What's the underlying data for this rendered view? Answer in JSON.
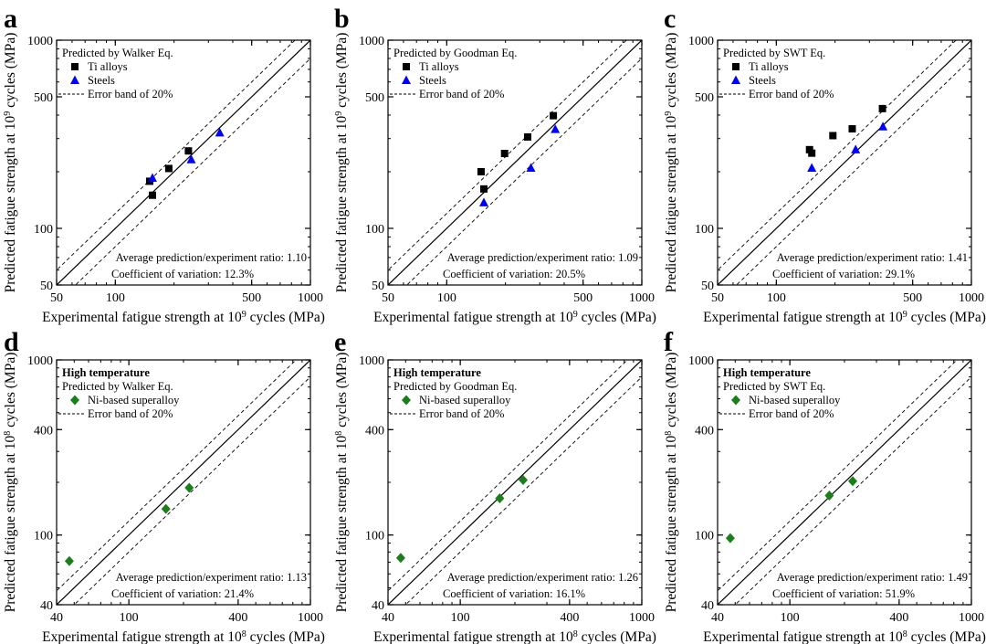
{
  "chart_data": [
    {
      "panel": "a",
      "type": "scatter",
      "xscale": "log",
      "yscale": "log",
      "xlim": [
        50,
        1000
      ],
      "ylim": [
        50,
        1000
      ],
      "xticks": [
        50,
        100,
        500,
        1000
      ],
      "yticks": [
        50,
        100,
        500,
        1000
      ],
      "xlabel": "Experimental fatigue strength at 10^9 cycles (MPa)",
      "ylabel": "Predicted fatigue strength at 10^9 cycles (MPa)",
      "cycles_exp": "9",
      "legend_title": "Predicted by Walker Eq.",
      "legend_title_bold": false,
      "legend_extra": "Error band of 20%",
      "series": [
        {
          "name": "Ti alloys",
          "marker": "square",
          "color": "#000000",
          "points": [
            [
              150,
              178
            ],
            [
              155,
              150
            ],
            [
              188,
              208
            ],
            [
              237,
              258
            ]
          ]
        },
        {
          "name": "Steels",
          "marker": "triangle",
          "color": "#0000ff",
          "points": [
            [
              155,
              185
            ],
            [
              245,
              232
            ],
            [
              343,
              322
            ]
          ]
        }
      ],
      "annotations": [
        "Average prediction/experiment ratio: 1.10",
        "Coefficient of variation: 12.3%"
      ]
    },
    {
      "panel": "b",
      "type": "scatter",
      "xscale": "log",
      "yscale": "log",
      "xlim": [
        50,
        1000
      ],
      "ylim": [
        50,
        1000
      ],
      "xticks": [
        50,
        100,
        500,
        1000
      ],
      "yticks": [
        50,
        100,
        500,
        1000
      ],
      "xlabel": "Experimental fatigue strength at 10^9 cycles (MPa)",
      "ylabel": "Predicted fatigue strength at 10^9 cycles (MPa)",
      "cycles_exp": "9",
      "legend_title": "Predicted by Goodman Eq.",
      "legend_title_bold": false,
      "legend_extra": "Error band of 20%",
      "series": [
        {
          "name": "Ti alloys",
          "marker": "square",
          "color": "#000000",
          "points": [
            [
              150,
              200
            ],
            [
              155,
              162
            ],
            [
              198,
              250
            ],
            [
              260,
              306
            ],
            [
              352,
              397
            ]
          ]
        },
        {
          "name": "Steels",
          "marker": "triangle",
          "color": "#0000ff",
          "points": [
            [
              155,
              137
            ],
            [
              270,
              209
            ],
            [
              360,
              336
            ]
          ]
        }
      ],
      "annotations": [
        "Average prediction/experiment ratio: 1.09",
        "Coefficient of variation: 20.5%"
      ]
    },
    {
      "panel": "c",
      "type": "scatter",
      "xscale": "log",
      "yscale": "log",
      "xlim": [
        50,
        1000
      ],
      "ylim": [
        50,
        1000
      ],
      "xticks": [
        50,
        100,
        500,
        1000
      ],
      "yticks": [
        50,
        100,
        500,
        1000
      ],
      "xlabel": "Experimental fatigue strength at 10^9 cycles (MPa)",
      "ylabel": "Predicted fatigue strength at 10^9 cycles (MPa)",
      "cycles_exp": "9",
      "legend_title": "Predicted by SWT Eq.",
      "legend_title_bold": false,
      "legend_extra": "Error band of 20%",
      "series": [
        {
          "name": "Ti alloys",
          "marker": "square",
          "color": "#000000",
          "points": [
            [
              148,
              262
            ],
            [
              152,
              251
            ],
            [
              195,
              311
            ],
            [
              245,
              338
            ],
            [
              350,
              433
            ]
          ]
        },
        {
          "name": "Steels",
          "marker": "triangle",
          "color": "#0000ff",
          "points": [
            [
              152,
              209
            ],
            [
              255,
              262
            ],
            [
              352,
              347
            ]
          ]
        }
      ],
      "annotations": [
        "Average prediction/experiment ratio: 1.41",
        "Coefficient of variation: 29.1%"
      ]
    },
    {
      "panel": "d",
      "type": "scatter",
      "xscale": "log",
      "yscale": "log",
      "xlim": [
        40,
        1000
      ],
      "ylim": [
        40,
        1000
      ],
      "xticks": [
        40,
        100,
        400,
        1000
      ],
      "yticks": [
        40,
        100,
        400,
        1000
      ],
      "xlabel": "Experimental fatigue strength at 10^8 cycles (MPa)",
      "ylabel": "Predicted fatigue strength at 10^8 cycles (MPa)",
      "cycles_exp": "8",
      "legend_title": "High temperature",
      "legend_title_bold": true,
      "legend_extra": "Predicted by Walker Eq.",
      "legend_band": "Error band of 20%",
      "series": [
        {
          "name": "Ni-based superalloy",
          "marker": "diamond",
          "color": "#1a7f1a",
          "points": [
            [
              47,
              71
            ],
            [
              160,
              141
            ],
            [
              215,
              186
            ]
          ]
        }
      ],
      "annotations": [
        "Average prediction/experiment ratio: 1.13",
        "Coefficient of variation: 21.4%"
      ]
    },
    {
      "panel": "e",
      "type": "scatter",
      "xscale": "log",
      "yscale": "log",
      "xlim": [
        40,
        1000
      ],
      "ylim": [
        40,
        1000
      ],
      "xticks": [
        40,
        100,
        400,
        1000
      ],
      "yticks": [
        40,
        100,
        400,
        1000
      ],
      "xlabel": "Experimental fatigue strength at 10^8 cycles (MPa)",
      "ylabel": "Predicted fatigue strength at 10^8 cycles (MPa)",
      "cycles_exp": "8",
      "legend_title": "High temperature",
      "legend_title_bold": true,
      "legend_extra": "Predicted by Goodman Eq.",
      "legend_band": "Error band of 20%",
      "series": [
        {
          "name": "Ni-based superalloy",
          "marker": "diamond",
          "color": "#1a7f1a",
          "points": [
            [
              47,
              74
            ],
            [
              165,
              162
            ],
            [
              222,
              206
            ]
          ]
        }
      ],
      "annotations": [
        "Average prediction/experiment ratio: 1.26",
        "Coefficient of variation: 16.1%"
      ]
    },
    {
      "panel": "f",
      "type": "scatter",
      "xscale": "log",
      "yscale": "log",
      "xlim": [
        40,
        1000
      ],
      "ylim": [
        40,
        1000
      ],
      "xticks": [
        40,
        100,
        400,
        1000
      ],
      "yticks": [
        40,
        100,
        400,
        1000
      ],
      "xlabel": "Experimental fatigue strength at 10^8 cycles (MPa)",
      "ylabel": "Predicted fatigue strength at 10^8 cycles (MPa)",
      "cycles_exp": "8",
      "legend_title": "High temperature",
      "legend_title_bold": true,
      "legend_extra": "Predicted by SWT Eq.",
      "legend_band": "Error band of 20%",
      "series": [
        {
          "name": "Ni-based superalloy",
          "marker": "diamond",
          "color": "#1a7f1a",
          "points": [
            [
              47,
              96
            ],
            [
              165,
              168
            ],
            [
              222,
              203
            ]
          ]
        }
      ],
      "annotations": [
        "Average prediction/experiment ratio: 1.49",
        "Coefficient of variation: 51.9%"
      ]
    }
  ]
}
